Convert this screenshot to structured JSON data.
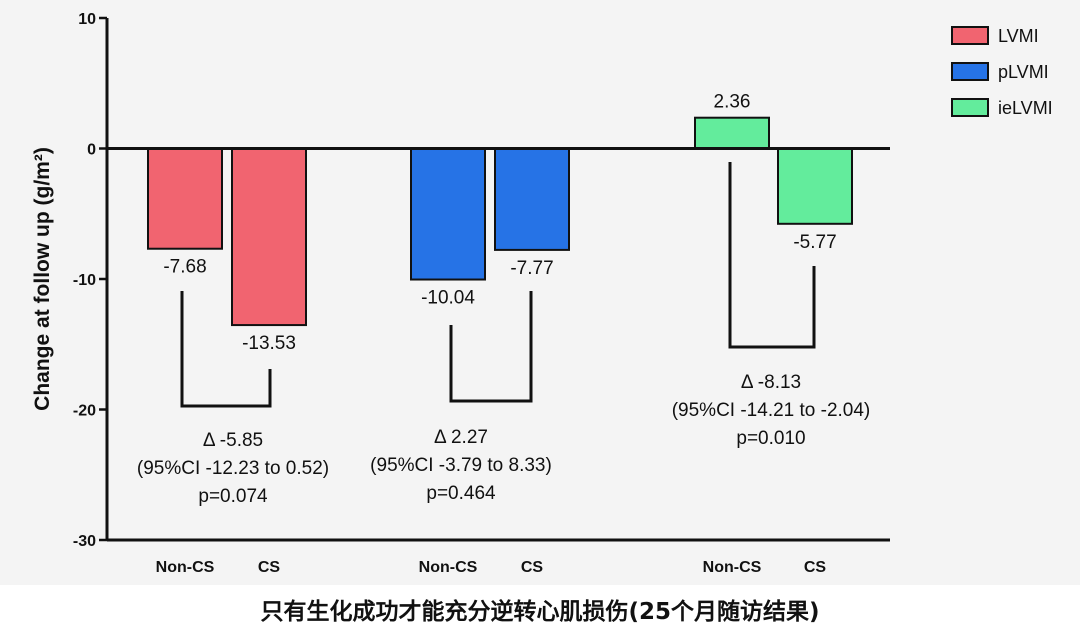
{
  "chart_data": {
    "type": "bar",
    "ylabel": "Change at follow up (g/m²)",
    "ylim": [
      -30,
      10
    ],
    "yticks": [
      10,
      0,
      -10,
      -20,
      -30
    ],
    "groups": [
      "Non-CS",
      "CS",
      "Non-CS",
      "CS",
      "Non-CS",
      "CS"
    ],
    "legend_position": "top-right",
    "series": [
      {
        "name": "LVMI",
        "color": "#f16470",
        "values": [
          -7.68,
          -13.53
        ],
        "labels": [
          "-7.68",
          "-13.53"
        ]
      },
      {
        "name": "pLVMI",
        "color": "#2673e6",
        "values": [
          -10.04,
          -7.77
        ],
        "labels": [
          "-10.04",
          "-7.77"
        ]
      },
      {
        "name": "ieLVMI",
        "color": "#63ec9c",
        "values": [
          2.36,
          -5.77
        ],
        "labels": [
          "2.36",
          "-5.77"
        ]
      }
    ],
    "annotations": [
      {
        "delta": "Δ -5.85",
        "ci": "(95%CI -12.23 to 0.52)",
        "p": "p=0.074"
      },
      {
        "delta": "Δ 2.27",
        "ci": "(95%CI -3.79 to 8.33)",
        "p": "p=0.464"
      },
      {
        "delta": "Δ -8.13",
        "ci": "(95%CI -14.21 to -2.04)",
        "p": "p=0.010"
      }
    ]
  },
  "caption": "只有生化成功才能充分逆转心肌损伤(25个月随访结果)"
}
